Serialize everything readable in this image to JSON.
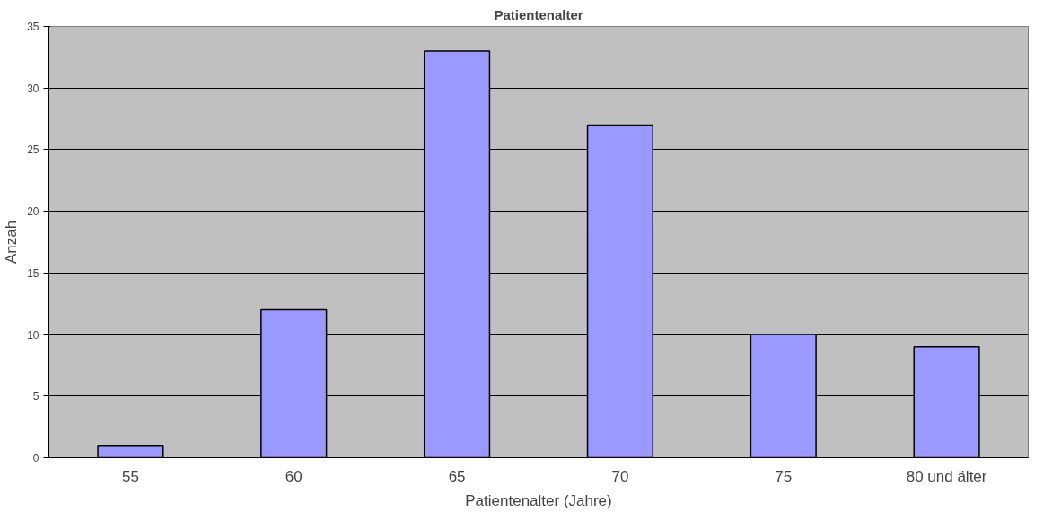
{
  "chart_data": {
    "type": "bar",
    "title": "Patientenalter",
    "xlabel": "Patientenalter (Jahre)",
    "ylabel": "Anzah",
    "categories": [
      "55",
      "60",
      "65",
      "70",
      "75",
      "80 und älter"
    ],
    "values": [
      1,
      12,
      33,
      27,
      10,
      9
    ],
    "color": "#9999ff",
    "ylim": [
      0,
      35
    ],
    "yticks": [
      0,
      5,
      10,
      15,
      20,
      25,
      30,
      35
    ],
    "grid": "y"
  }
}
